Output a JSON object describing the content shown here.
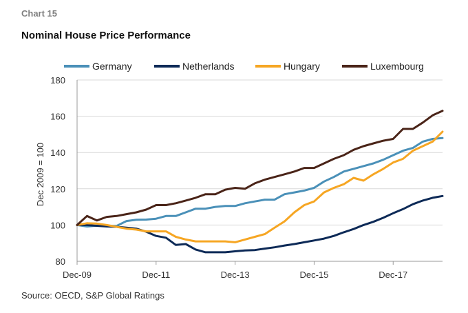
{
  "header": {
    "chart_label": "Chart 15",
    "title": "Nominal House Price Performance"
  },
  "footer": {
    "source": "Source: OECD, S&P Global Ratings"
  },
  "chart_data": {
    "type": "line",
    "title": "Nominal House Price Performance",
    "xlabel": "",
    "ylabel": "Dec 2009 = 100",
    "ylim": [
      80,
      180
    ],
    "yticks": [
      80,
      100,
      120,
      140,
      160,
      180
    ],
    "xticks": [
      "Dec-09",
      "Dec-11",
      "Dec-13",
      "Dec-15",
      "Dec-17"
    ],
    "grid": "horizontal",
    "legend_position": "top",
    "x_start": "Dec-09",
    "x_step": "quarter",
    "series": [
      {
        "name": "Germany",
        "color": "#4a90b8",
        "values": [
          100,
          99.2,
          99.7,
          99.5,
          99.5,
          102.2,
          102.9,
          103,
          103.5,
          105,
          105,
          107,
          109,
          109,
          110,
          110.5,
          110.5,
          112,
          113,
          114,
          114,
          117,
          118,
          119,
          120.5,
          124,
          126.5,
          129.5,
          131,
          132.5,
          134,
          136,
          138.5,
          141,
          142.5,
          146,
          147.5,
          148
        ]
      },
      {
        "name": "Netherlands",
        "color": "#0d2a57",
        "values": [
          100,
          100,
          99.6,
          99.2,
          99,
          98.5,
          98,
          96.3,
          94,
          93,
          89,
          89.5,
          86.5,
          85,
          85,
          85,
          85.5,
          86,
          86.2,
          87,
          87.7,
          88.7,
          89.5,
          90.5,
          91.5,
          92.5,
          94,
          96,
          97.8,
          100,
          101.8,
          104,
          106.5,
          108.8,
          111.5,
          113.5,
          115,
          116
        ]
      },
      {
        "name": "Hungary",
        "color": "#f6a623",
        "values": [
          100,
          101,
          100.8,
          100,
          99,
          98,
          97.5,
          96.5,
          96.5,
          96.5,
          93.5,
          92,
          91,
          91,
          91,
          91,
          90.5,
          92,
          93.5,
          95,
          98.5,
          102,
          107,
          111,
          113,
          118,
          120.5,
          122.5,
          126,
          124.5,
          128,
          131,
          134.5,
          136.5,
          141,
          143.5,
          146,
          151.5
        ]
      },
      {
        "name": "Luxembourg",
        "color": "#4a2418",
        "values": [
          100,
          105,
          102.5,
          104.5,
          105,
          106,
          107,
          108.5,
          111,
          111,
          112,
          113.5,
          115,
          117,
          117,
          119.5,
          120.5,
          120,
          123,
          125,
          126.5,
          128,
          129.5,
          131.5,
          131.5,
          134,
          136.5,
          138.5,
          141.5,
          143.5,
          145,
          146.5,
          147.5,
          153,
          153,
          156.5,
          160.5,
          163
        ]
      }
    ]
  }
}
